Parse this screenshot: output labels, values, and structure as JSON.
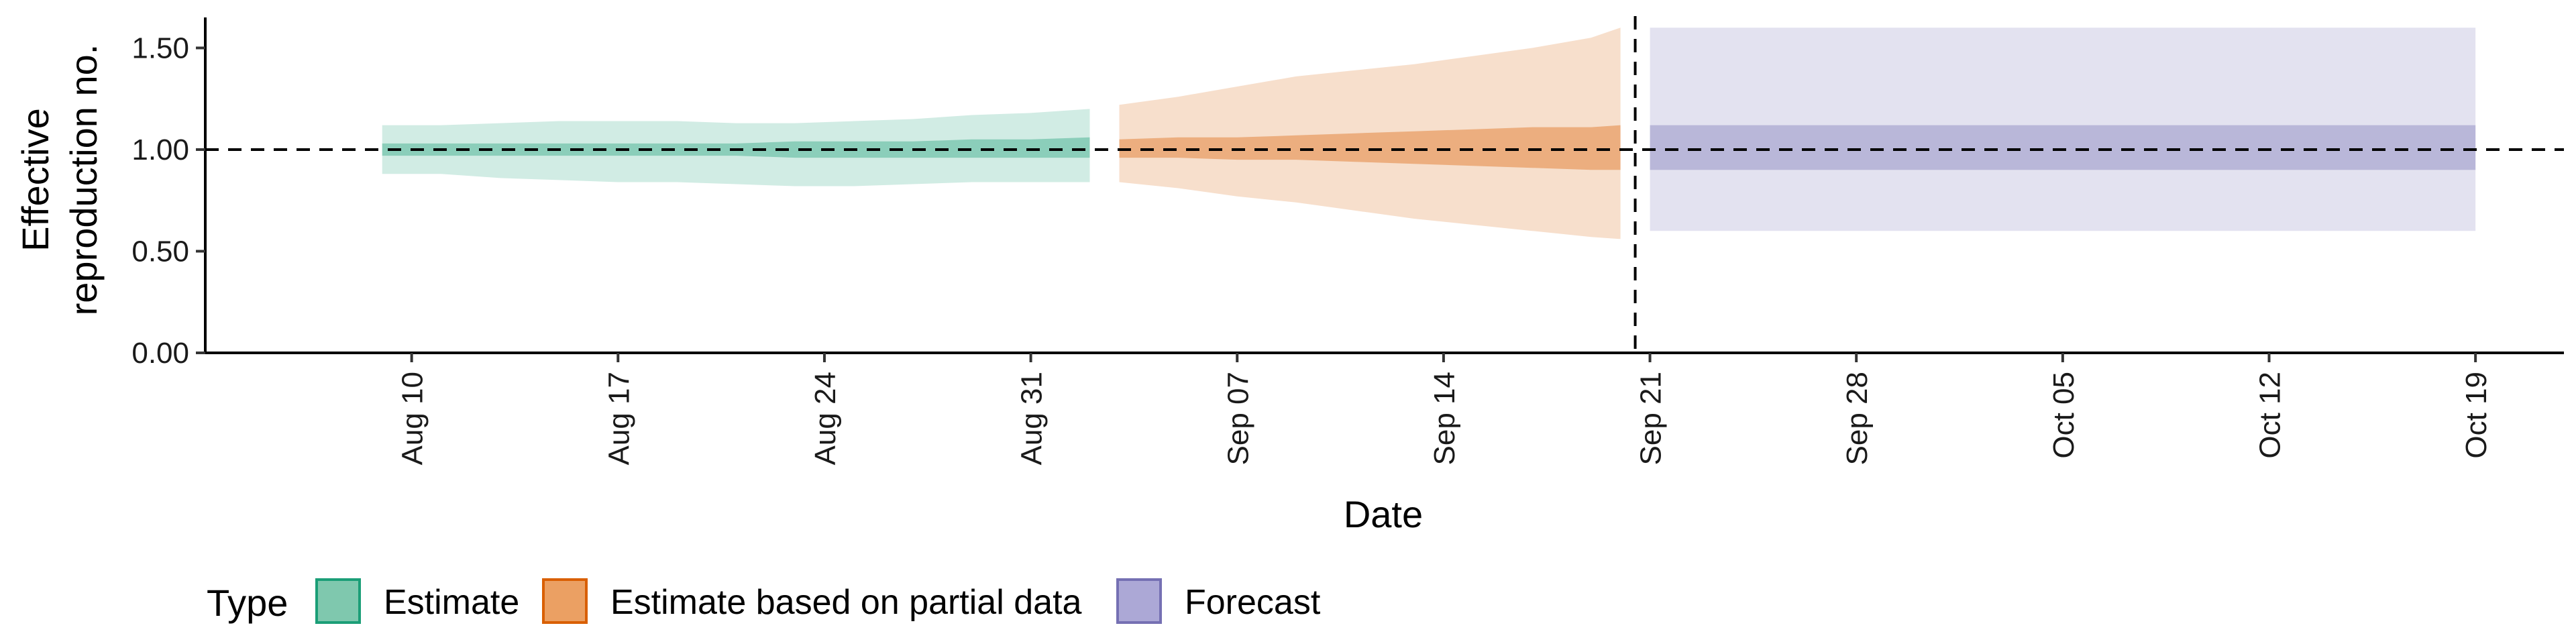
{
  "chart_data": {
    "type": "area",
    "xlabel": "Date",
    "ylabel_lines": [
      "Effective",
      "reproduction no."
    ],
    "ylim": [
      0,
      1.65
    ],
    "yticks": [
      0,
      0.5,
      1,
      1.5
    ],
    "ytick_labels": [
      "0.00",
      "0.50",
      "1.00",
      "1.50"
    ],
    "xlim": [
      "2020-08-03",
      "2020-10-22"
    ],
    "xticks": [
      "2020-08-10",
      "2020-08-17",
      "2020-08-24",
      "2020-08-31",
      "2020-09-07",
      "2020-09-14",
      "2020-09-21",
      "2020-09-28",
      "2020-10-05",
      "2020-10-12",
      "2020-10-19"
    ],
    "xtick_labels": [
      "Aug 10",
      "Aug 17",
      "Aug 24",
      "Aug 31",
      "Sep 07",
      "Sep 14",
      "Sep 21",
      "Sep 28",
      "Oct 05",
      "Oct 12",
      "Oct 19"
    ],
    "reference_line_y": 1.0,
    "forecast_start_line": "2020-09-20",
    "legend_position": "bottom-left",
    "legend_title": "Type",
    "series": [
      {
        "name": "Estimate",
        "color_fill": "#1B9E77",
        "legend_fill": "#7FC8AE",
        "x": [
          "2020-08-09",
          "2020-08-11",
          "2020-08-13",
          "2020-08-15",
          "2020-08-17",
          "2020-08-19",
          "2020-08-21",
          "2020-08-23",
          "2020-08-25",
          "2020-08-27",
          "2020-08-29",
          "2020-08-31",
          "2020-09-02"
        ],
        "outer_lower": [
          0.88,
          0.88,
          0.86,
          0.85,
          0.84,
          0.84,
          0.83,
          0.82,
          0.82,
          0.83,
          0.84,
          0.84,
          0.84
        ],
        "outer_upper": [
          1.12,
          1.12,
          1.13,
          1.14,
          1.14,
          1.14,
          1.13,
          1.13,
          1.14,
          1.15,
          1.17,
          1.18,
          1.2
        ],
        "inner_lower": [
          0.97,
          0.97,
          0.97,
          0.97,
          0.97,
          0.97,
          0.97,
          0.96,
          0.96,
          0.96,
          0.96,
          0.96,
          0.96
        ],
        "inner_upper": [
          1.03,
          1.03,
          1.03,
          1.03,
          1.03,
          1.03,
          1.03,
          1.04,
          1.04,
          1.04,
          1.05,
          1.05,
          1.06
        ]
      },
      {
        "name": "Estimate based on partial data",
        "color_fill": "#D95F02",
        "legend_fill": "#EBA063",
        "x": [
          "2020-09-03",
          "2020-09-05",
          "2020-09-07",
          "2020-09-09",
          "2020-09-11",
          "2020-09-13",
          "2020-09-15",
          "2020-09-17",
          "2020-09-19",
          "2020-09-20"
        ],
        "outer_lower": [
          0.84,
          0.81,
          0.77,
          0.74,
          0.7,
          0.66,
          0.63,
          0.6,
          0.57,
          0.56
        ],
        "outer_upper": [
          1.22,
          1.26,
          1.31,
          1.36,
          1.39,
          1.42,
          1.46,
          1.5,
          1.55,
          1.6
        ],
        "inner_lower": [
          0.96,
          0.96,
          0.95,
          0.95,
          0.94,
          0.93,
          0.92,
          0.91,
          0.9,
          0.9
        ],
        "inner_upper": [
          1.05,
          1.06,
          1.06,
          1.07,
          1.08,
          1.09,
          1.1,
          1.11,
          1.11,
          1.12
        ]
      },
      {
        "name": "Forecast",
        "color_fill": "#7570B3",
        "legend_fill": "#ACA8D6",
        "x": [
          "2020-09-21",
          "2020-10-19"
        ],
        "outer_lower": [
          0.6,
          0.6
        ],
        "outer_upper": [
          1.6,
          1.6
        ],
        "inner_lower": [
          0.9,
          0.9
        ],
        "inner_upper": [
          1.12,
          1.12
        ]
      }
    ]
  }
}
